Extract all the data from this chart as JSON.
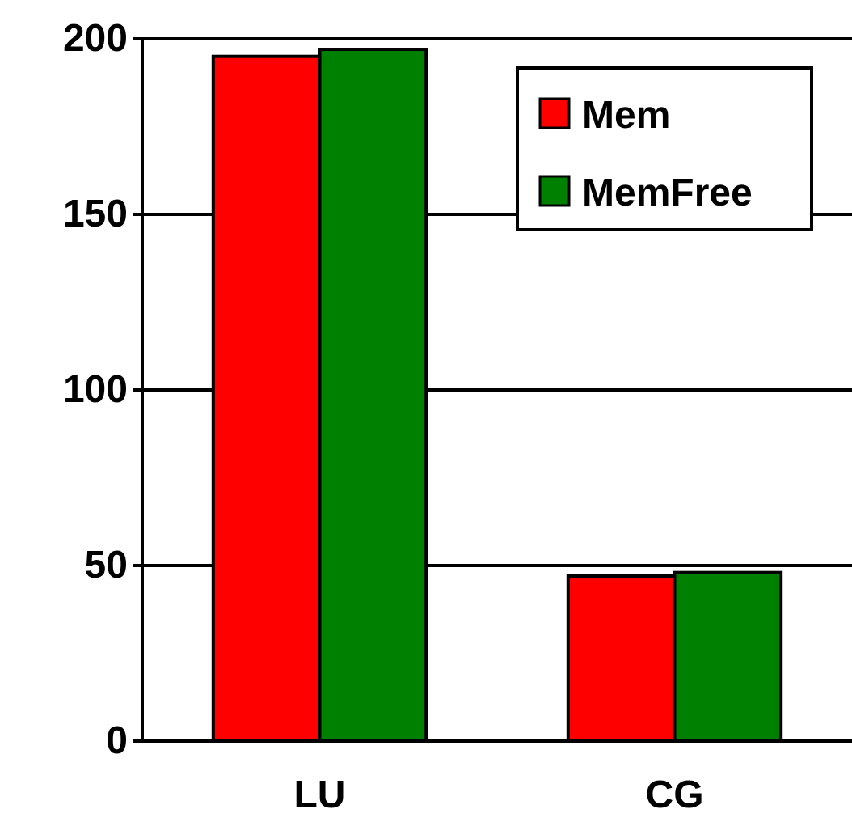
{
  "chart_data": {
    "type": "bar",
    "categories": [
      "LU",
      "CG"
    ],
    "series": [
      {
        "name": "Mem",
        "color": "#ff0000",
        "values": [
          195,
          47
        ]
      },
      {
        "name": "MemFree",
        "color": "#008000",
        "values": [
          197,
          48
        ]
      }
    ],
    "ylim": [
      0,
      200
    ],
    "yticks": [
      0,
      50,
      100,
      150,
      200
    ],
    "grid": "y",
    "legend": "top right"
  }
}
